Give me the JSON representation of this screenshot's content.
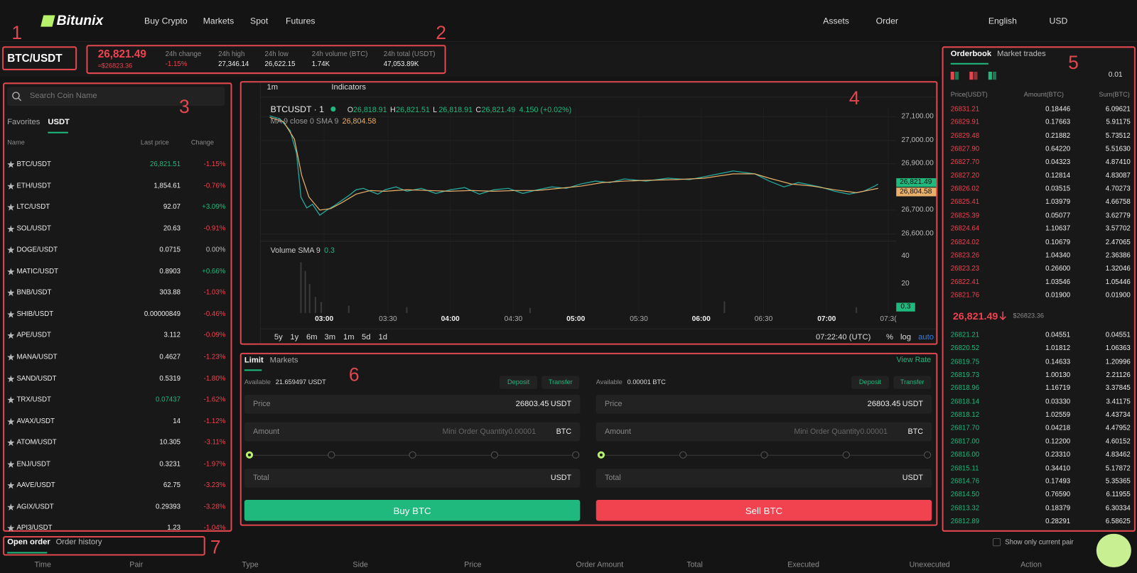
{
  "header": {
    "logo": "Bitunix",
    "nav": [
      "Buy Crypto",
      "Markets",
      "Spot",
      "Futures"
    ],
    "right": [
      "Assets",
      "Order",
      "English",
      "USD"
    ]
  },
  "annotations": [
    "1",
    "2",
    "3",
    "4",
    "5",
    "6",
    "7"
  ],
  "ticker": {
    "pair": "BTC/USDT",
    "price": "26,821.49",
    "price_usd": "≈$26823.36",
    "stats": [
      {
        "label": "24h change",
        "value": "-1.15%"
      },
      {
        "label": "24h high",
        "value": "27,346.14"
      },
      {
        "label": "24h low",
        "value": "26,622.15"
      },
      {
        "label": "24h volume (BTC)",
        "value": "1.74K"
      },
      {
        "label": "24h total (USDT)",
        "value": "47,053.89K"
      }
    ]
  },
  "coin_list": {
    "search": "Search Coin Name",
    "tabs": [
      "Favorites",
      "USDT"
    ],
    "columns": [
      "Name",
      "Last price",
      "Change"
    ],
    "rows": [
      {
        "name": "BTC/USDT",
        "price": "26,821.51",
        "change": "-1.15%",
        "price_color": "#1fb87d"
      },
      {
        "name": "ETH/USDT",
        "price": "1,854.61",
        "change": "-0.76%"
      },
      {
        "name": "LTC/USDT",
        "price": "92.07",
        "change": "+3.09%"
      },
      {
        "name": "SOL/USDT",
        "price": "20.63",
        "change": "-0.91%"
      },
      {
        "name": "DOGE/USDT",
        "price": "0.0715",
        "change": "0.00%"
      },
      {
        "name": "MATIC/USDT",
        "price": "0.8903",
        "change": "+0.66%"
      },
      {
        "name": "BNB/USDT",
        "price": "303.88",
        "change": "-1.03%"
      },
      {
        "name": "SHIB/USDT",
        "price": "0.00000849",
        "change": "-0.46%"
      },
      {
        "name": "APE/USDT",
        "price": "3.112",
        "change": "-0.09%"
      },
      {
        "name": "MANA/USDT",
        "price": "0.4627",
        "change": "-1.23%"
      },
      {
        "name": "SAND/USDT",
        "price": "0.5319",
        "change": "-1.80%"
      },
      {
        "name": "TRX/USDT",
        "price": "0.07437",
        "change": "-1.62%",
        "price_color": "#1fb87d"
      },
      {
        "name": "AVAX/USDT",
        "price": "14",
        "change": "-1.12%"
      },
      {
        "name": "ATOM/USDT",
        "price": "10.305",
        "change": "-3.11%"
      },
      {
        "name": "ENJ/USDT",
        "price": "0.3231",
        "change": "-1.97%"
      },
      {
        "name": "AAVE/USDT",
        "price": "62.75",
        "change": "-3.23%"
      },
      {
        "name": "AGIX/USDT",
        "price": "0.29393",
        "change": "-3.28%"
      },
      {
        "name": "API3/USDT",
        "price": "1.23",
        "change": "-1.04%"
      }
    ]
  },
  "chart": {
    "interval": "1m",
    "indicators": "Indicators",
    "symbol": "BTCUSDT · 1",
    "ohlc": [
      {
        "label": "O",
        "value": "26,818.91"
      },
      {
        "label": "H",
        "value": "26,821.51"
      },
      {
        "label": "L",
        "value": "26,818.91"
      },
      {
        "label": "C",
        "value": "26,821.49"
      }
    ],
    "change": "4.150 (+0.02%)",
    "ma": "MA 9 close 0 SMA 9",
    "ma_value": "26,804.58",
    "price_ticks": [
      "27,100.00",
      "27,000.00",
      "26,900.00",
      "26,700.00",
      "26,600.00"
    ],
    "price_tags": [
      "26,821.49",
      "26,804.58"
    ],
    "volume_label": "Volume SMA 9",
    "volume_value": "0.3",
    "volume_ticks": [
      "40",
      "20"
    ],
    "volume_tag": "0.3",
    "time_ticks": [
      "03:00",
      "03:30",
      "04:00",
      "04:30",
      "05:00",
      "05:30",
      "06:00",
      "06:30",
      "07:00",
      "07:3("
    ],
    "ranges": [
      "5y",
      "1y",
      "6m",
      "3m",
      "1m",
      "5d",
      "1d"
    ],
    "clock": "07:22:40 (UTC)",
    "scale_options": [
      "%",
      "log",
      "auto"
    ]
  },
  "orderbook": {
    "tabs": [
      "Orderbook",
      "Market trades"
    ],
    "precision": "0.01",
    "columns": [
      "Price(USDT)",
      "Amount(BTC)",
      "Sum(BTC)"
    ],
    "asks": [
      [
        "26831.21",
        "0.18446",
        "6.09621"
      ],
      [
        "26829.91",
        "0.17663",
        "5.91175"
      ],
      [
        "26829.48",
        "0.21882",
        "5.73512"
      ],
      [
        "26827.90",
        "0.64220",
        "5.51630"
      ],
      [
        "26827.70",
        "0.04323",
        "4.87410"
      ],
      [
        "26827.20",
        "0.12814",
        "4.83087"
      ],
      [
        "26826.02",
        "0.03515",
        "4.70273"
      ],
      [
        "26825.41",
        "1.03979",
        "4.66758"
      ],
      [
        "26825.39",
        "0.05077",
        "3.62779"
      ],
      [
        "26824.64",
        "1.10637",
        "3.57702"
      ],
      [
        "26824.02",
        "0.10679",
        "2.47065"
      ],
      [
        "26823.26",
        "1.04340",
        "2.36386"
      ],
      [
        "26823.23",
        "0.26600",
        "1.32046"
      ],
      [
        "26822.41",
        "1.03546",
        "1.05446"
      ],
      [
        "26821.76",
        "0.01900",
        "0.01900"
      ]
    ],
    "mid_price": "26,821.49",
    "mid_usd": "$26823.36",
    "bids": [
      [
        "26821.21",
        "0.04551",
        "0.04551"
      ],
      [
        "26820.52",
        "1.01812",
        "1.06363"
      ],
      [
        "26819.75",
        "0.14633",
        "1.20996"
      ],
      [
        "26819.73",
        "1.00130",
        "2.21126"
      ],
      [
        "26818.96",
        "1.16719",
        "3.37845"
      ],
      [
        "26818.14",
        "0.03330",
        "3.41175"
      ],
      [
        "26818.12",
        "1.02559",
        "4.43734"
      ],
      [
        "26817.70",
        "0.04218",
        "4.47952"
      ],
      [
        "26817.00",
        "0.12200",
        "4.60152"
      ],
      [
        "26816.00",
        "0.23310",
        "4.83462"
      ],
      [
        "26815.11",
        "0.34410",
        "5.17872"
      ],
      [
        "26814.76",
        "0.17493",
        "5.35365"
      ],
      [
        "26814.50",
        "0.76590",
        "6.11955"
      ],
      [
        "26813.32",
        "0.18379",
        "6.30334"
      ],
      [
        "26812.89",
        "0.28291",
        "6.58625"
      ]
    ]
  },
  "trade": {
    "tabs": [
      "Limit",
      "Markets"
    ],
    "view_rate": "View Rate",
    "sides": [
      {
        "available_label": "Available",
        "available": "21.659497 USDT",
        "deposit": "Deposit",
        "transfer": "Transfer",
        "price_label": "Price",
        "price": "26803.45",
        "price_unit": "USDT",
        "amount_label": "Amount",
        "amount_placeholder": "Mini Order Quantity0.00001",
        "amount_unit": "BTC",
        "total_label": "Total",
        "total_unit": "USDT",
        "button": "Buy BTC",
        "button_color": "#1fb87d"
      },
      {
        "available_label": "Available",
        "available": "0.00001 BTC",
        "deposit": "Deposit",
        "transfer": "Transfer",
        "price_label": "Price",
        "price": "26803.45",
        "price_unit": "USDT",
        "amount_label": "Amount",
        "amount_placeholder": "Mini Order Quantity0.00001",
        "amount_unit": "BTC",
        "total_label": "Total",
        "total_unit": "USDT",
        "button": "Sell BTC",
        "button_color": "#f0424f"
      }
    ]
  },
  "orders": {
    "tabs": [
      "Open order",
      "Order history"
    ],
    "filter": "Show only current pair",
    "columns": [
      "Time",
      "Pair",
      "Type",
      "Side",
      "Price",
      "Order Amount",
      "Total",
      "Executed",
      "Unexecuted",
      "Action"
    ]
  }
}
